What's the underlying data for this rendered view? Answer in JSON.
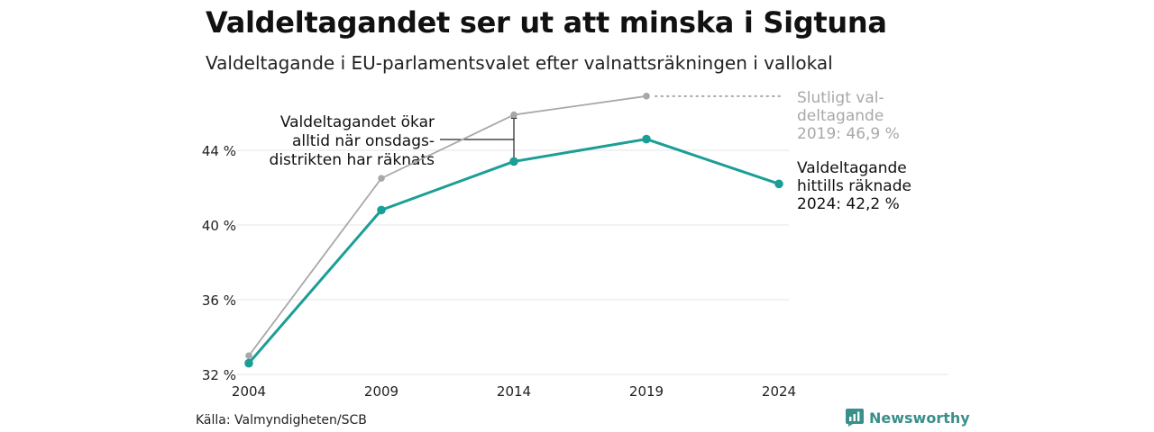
{
  "header": {
    "title": "Valdeltagandet ser ut att minska i Sigtuna",
    "subtitle": "Valdeltagande i EU-parlamentsvalet efter valnattsräkningen i vallokal"
  },
  "footer": {
    "source": "Källa: Valmyndigheten/SCB",
    "brand": "Newsworthy"
  },
  "colors": {
    "current": "#1a9e96",
    "final": "#a8a8a8",
    "grid": "#e4e4e4",
    "annotation_final": "#a8a8a8",
    "text": "#111111"
  },
  "chart_data": {
    "type": "line",
    "x": [
      "2004",
      "2009",
      "2014",
      "2019",
      "2024"
    ],
    "ylim": [
      32,
      47.5
    ],
    "yticks": [
      32,
      36,
      40,
      44
    ],
    "ytick_labels": [
      "32 %",
      "36 %",
      "40 %",
      "44 %"
    ],
    "grid": true,
    "series": [
      {
        "key": "final",
        "values": [
          33.0,
          42.5,
          45.9,
          46.9,
          null
        ]
      },
      {
        "key": "current",
        "values": [
          32.6,
          40.8,
          43.4,
          44.6,
          42.2
        ]
      }
    ],
    "annotations": {
      "final_label": [
        "Slutligt val-",
        "deltagande",
        "2019: 46,9 %"
      ],
      "current_label": [
        "Valdeltagande",
        "hittills räknade",
        "2024: 42,2 %"
      ],
      "note": [
        "Valdeltagandet ökar",
        "alltid när onsdags-",
        "distrikten har räknats"
      ]
    }
  }
}
